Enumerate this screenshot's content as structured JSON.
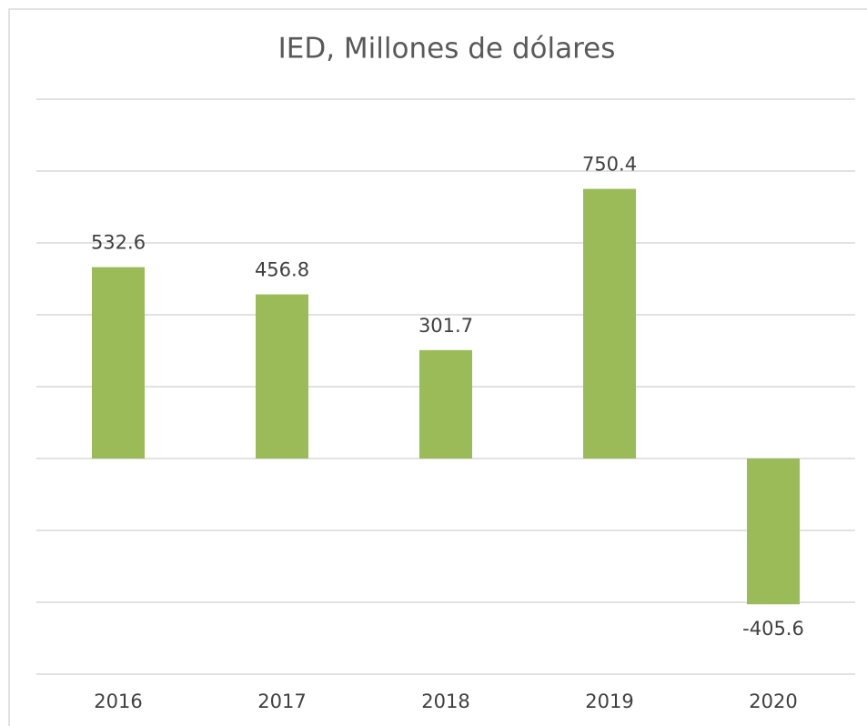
{
  "chart_data": {
    "type": "bar",
    "title": "IED, Millones de dólares",
    "categories": [
      "2016",
      "2017",
      "2018",
      "2019",
      "2020"
    ],
    "values": [
      532.6,
      456.8,
      301.7,
      750.4,
      -405.6
    ],
    "color": "#9bbb59",
    "ylim": [
      -600,
      1000
    ],
    "yticks": [
      -600,
      -400,
      -200,
      0,
      200,
      400,
      600,
      800,
      1000
    ],
    "grid": true
  }
}
